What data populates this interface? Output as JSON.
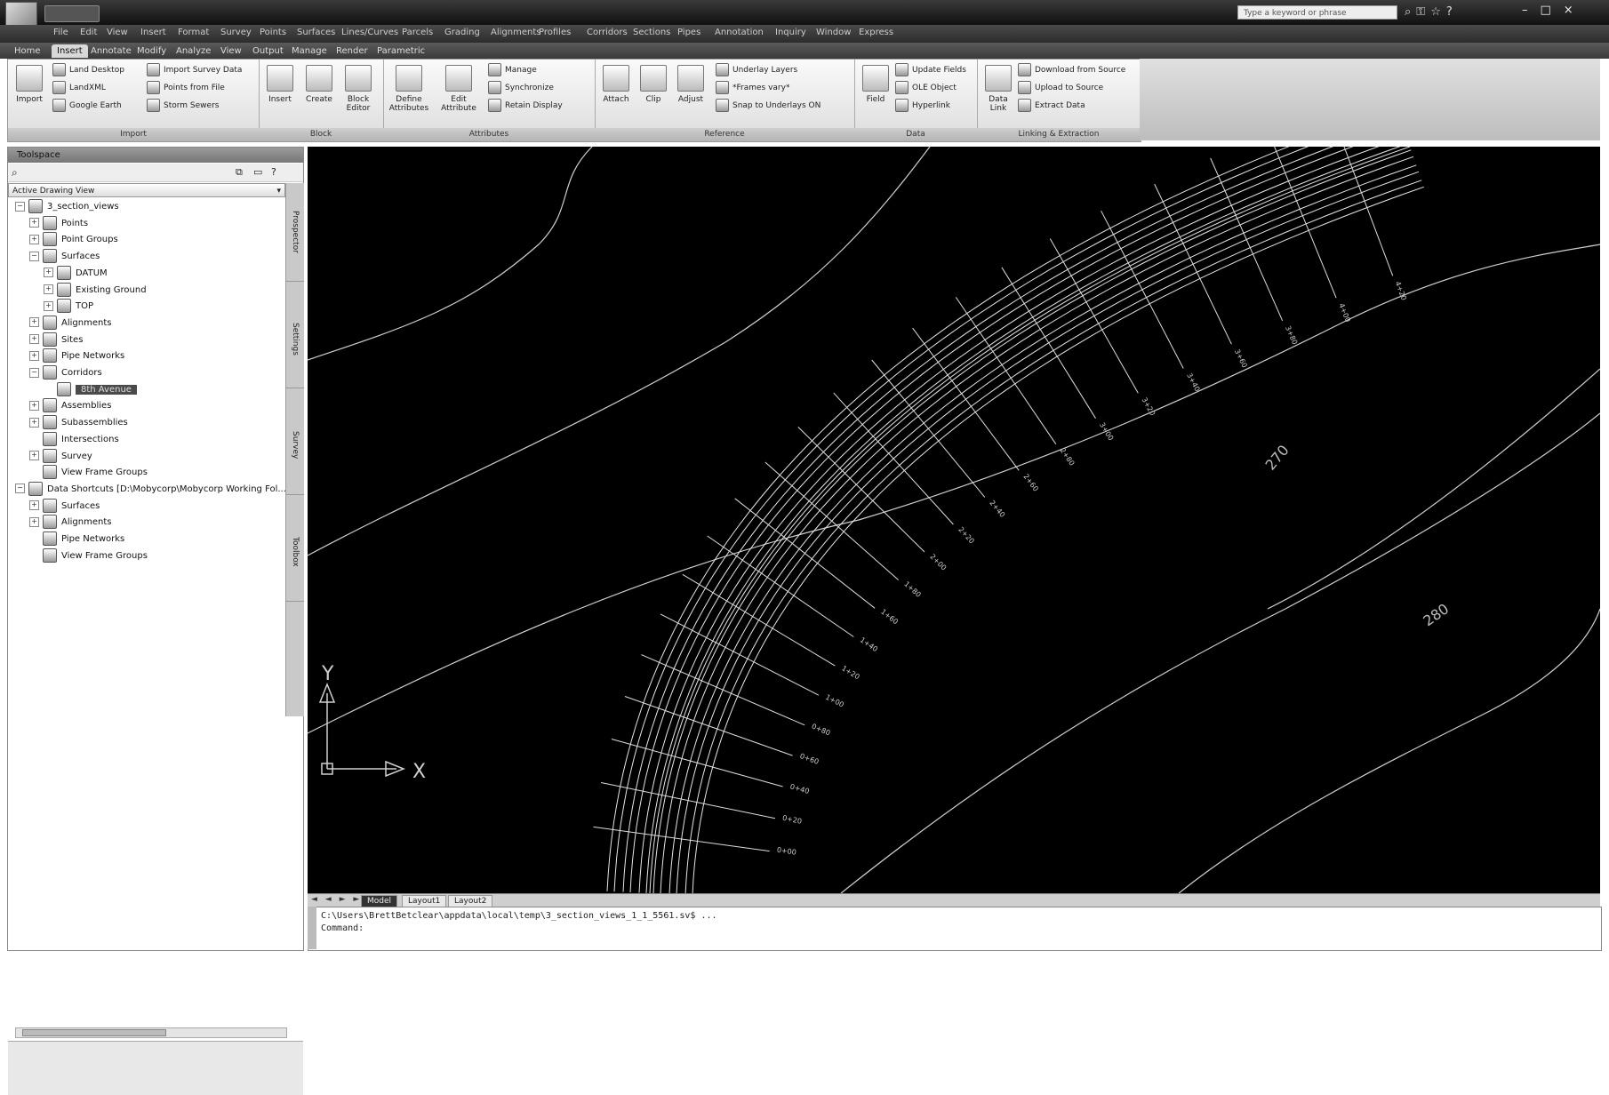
{
  "title_bar": {
    "window_title": "",
    "search_placeholder": "Type a keyword or phrase",
    "icons": [
      "binoculars-icon",
      "key-icon",
      "star-icon",
      "help-icon"
    ]
  },
  "menu": [
    "File",
    "Edit",
    "View",
    "Insert",
    "Format",
    "Survey",
    "Points",
    "Surfaces",
    "Lines/Curves",
    "Parcels",
    "Grading",
    "Alignments",
    "Profiles",
    "Corridors",
    "Sections",
    "Pipes",
    "Annotation",
    "Inquiry",
    "Window",
    "Express"
  ],
  "ribbon_tabs": [
    "Home",
    "Insert",
    "Annotate",
    "Modify",
    "Analyze",
    "View",
    "Output",
    "Manage",
    "Render",
    "Parametric"
  ],
  "ribbon_active_tab": "Insert",
  "ribbon_panels": {
    "import": {
      "label": "Import",
      "big": "Import",
      "small": [
        "Land Desktop",
        "LandXML",
        "Google Earth",
        "Import Survey Data",
        "Points from File",
        "Storm Sewers"
      ]
    },
    "block": {
      "label": "Block",
      "buttons": [
        "Insert",
        "Create",
        "Block Editor"
      ]
    },
    "attributes": {
      "label": "Attributes",
      "buttons": [
        "Define Attributes",
        "Edit Attribute"
      ],
      "small": [
        "Manage",
        "Synchronize",
        "Retain Display"
      ]
    },
    "reference": {
      "label": "Reference",
      "buttons": [
        "Attach",
        "Clip",
        "Adjust"
      ],
      "small": [
        "Underlay Layers",
        "*Frames vary*",
        "Snap to Underlays ON"
      ]
    },
    "data": {
      "label": "Data",
      "buttons": [
        "Field"
      ],
      "small": [
        "Update Fields",
        "OLE Object",
        "Hyperlink"
      ]
    },
    "linking": {
      "label": "Linking & Extraction",
      "buttons": [
        "Data Link"
      ],
      "small": [
        "Download from Source",
        "Upload to Source",
        "Extract Data"
      ]
    }
  },
  "toolspace": {
    "title": "Toolspace",
    "view_select": "Active Drawing View",
    "side_tabs": [
      "Prospector",
      "Settings",
      "Survey",
      "Toolbox"
    ],
    "tree": [
      {
        "label": "3_section_views",
        "level": 0,
        "exp": "−"
      },
      {
        "label": "Points",
        "level": 1,
        "exp": "+"
      },
      {
        "label": "Point Groups",
        "level": 1,
        "exp": "+"
      },
      {
        "label": "Surfaces",
        "level": 1,
        "exp": "−"
      },
      {
        "label": "DATUM",
        "level": 2,
        "exp": "+"
      },
      {
        "label": "Existing Ground",
        "level": 2,
        "exp": "+"
      },
      {
        "label": "TOP",
        "level": 2,
        "exp": "+"
      },
      {
        "label": "Alignments",
        "level": 1,
        "exp": "+"
      },
      {
        "label": "Sites",
        "level": 1,
        "exp": "+"
      },
      {
        "label": "Pipe Networks",
        "level": 1,
        "exp": "+"
      },
      {
        "label": "Corridors",
        "level": 1,
        "exp": "−"
      },
      {
        "label": "8th Avenue",
        "level": 2,
        "exp": "",
        "selected": true
      },
      {
        "label": "Assemblies",
        "level": 1,
        "exp": "+"
      },
      {
        "label": "Subassemblies",
        "level": 1,
        "exp": "+"
      },
      {
        "label": "Intersections",
        "level": 1,
        "exp": ""
      },
      {
        "label": "Survey",
        "level": 1,
        "exp": "+"
      },
      {
        "label": "View Frame Groups",
        "level": 1,
        "exp": ""
      },
      {
        "label": "Data Shortcuts [D:\\Mobycorp\\Mobycorp Working Fol...",
        "level": 0,
        "exp": "−"
      },
      {
        "label": "Surfaces",
        "level": 1,
        "exp": "+"
      },
      {
        "label": "Alignments",
        "level": 1,
        "exp": "+"
      },
      {
        "label": "Pipe Networks",
        "level": 1,
        "exp": ""
      },
      {
        "label": "View Frame Groups",
        "level": 1,
        "exp": ""
      }
    ]
  },
  "canvas": {
    "contour_labels": [
      "270",
      "280"
    ],
    "station_labels": [
      "0+00",
      "0+20",
      "0+40",
      "0+60",
      "0+80",
      "1+00",
      "1+20",
      "1+40",
      "1+60",
      "1+80",
      "2+00",
      "2+20",
      "2+40",
      "2+60",
      "2+80",
      "3+00",
      "3+20",
      "3+40",
      "3+60",
      "3+80",
      "4+00",
      "4+20"
    ],
    "ucs_y": "Y",
    "ucs_x": "X",
    "colors": {
      "background": "#000000",
      "linework": "#e6e6e6"
    }
  },
  "layout_tabs": {
    "nav": "◄ ◄ ► ►",
    "tabs": [
      "Model",
      "Layout1",
      "Layout2"
    ],
    "active": "Model"
  },
  "command_line": {
    "line1": "C:\\Users\\BrettBetclear\\appdata\\local\\temp\\3_section_views_1_1_5561.sv$ ...",
    "line2": "Command:"
  }
}
